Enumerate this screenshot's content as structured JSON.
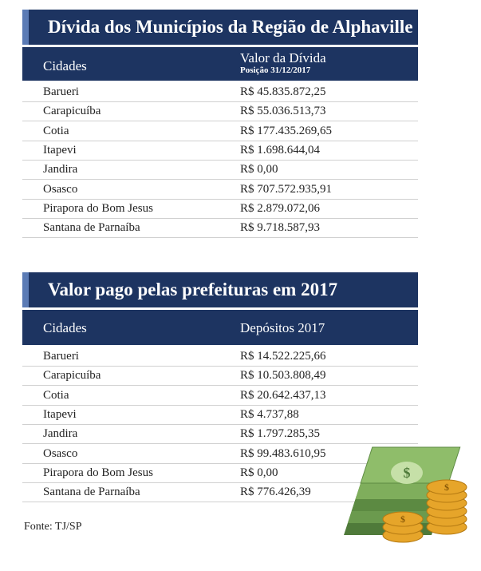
{
  "tables": [
    {
      "title": "Dívida dos Municípios da Região de Alphaville",
      "header": [
        "Cidades",
        "Valor da Dívida"
      ],
      "header_note": "Posição 31/12/2017",
      "rows": [
        [
          "Barueri",
          "R$ 45.835.872,25"
        ],
        [
          "Carapicuíba",
          "R$ 55.036.513,73"
        ],
        [
          "Cotia",
          "R$ 177.435.269,65"
        ],
        [
          "Itapevi",
          "R$ 1.698.644,04"
        ],
        [
          "Jandira",
          "R$ 0,00"
        ],
        [
          "Osasco",
          "R$ 707.572.935,91"
        ],
        [
          "Pirapora do Bom Jesus",
          "R$ 2.879.072,06"
        ],
        [
          "Santana de Parnaíba",
          "R$ 9.718.587,93"
        ]
      ]
    },
    {
      "title": "Valor pago pelas prefeituras em 2017",
      "header": [
        "Cidades",
        "Depósitos 2017"
      ],
      "rows": [
        [
          "Barueri",
          "R$ 14.522.225,66"
        ],
        [
          "Carapicuíba",
          "R$ 10.503.808,49"
        ],
        [
          "Cotia",
          "R$ 20.642.437,13"
        ],
        [
          "Itapevi",
          "R$ 4.737,88"
        ],
        [
          "Jandira",
          "R$ 1.797.285,35"
        ],
        [
          "Osasco",
          "R$ 99.483.610,95"
        ],
        [
          "Pirapora do Bom Jesus",
          "R$ 0,00"
        ],
        [
          "Santana de Parnaíba",
          "R$ 776.426,39"
        ]
      ]
    }
  ],
  "source": "Fonte: TJ/SP"
}
